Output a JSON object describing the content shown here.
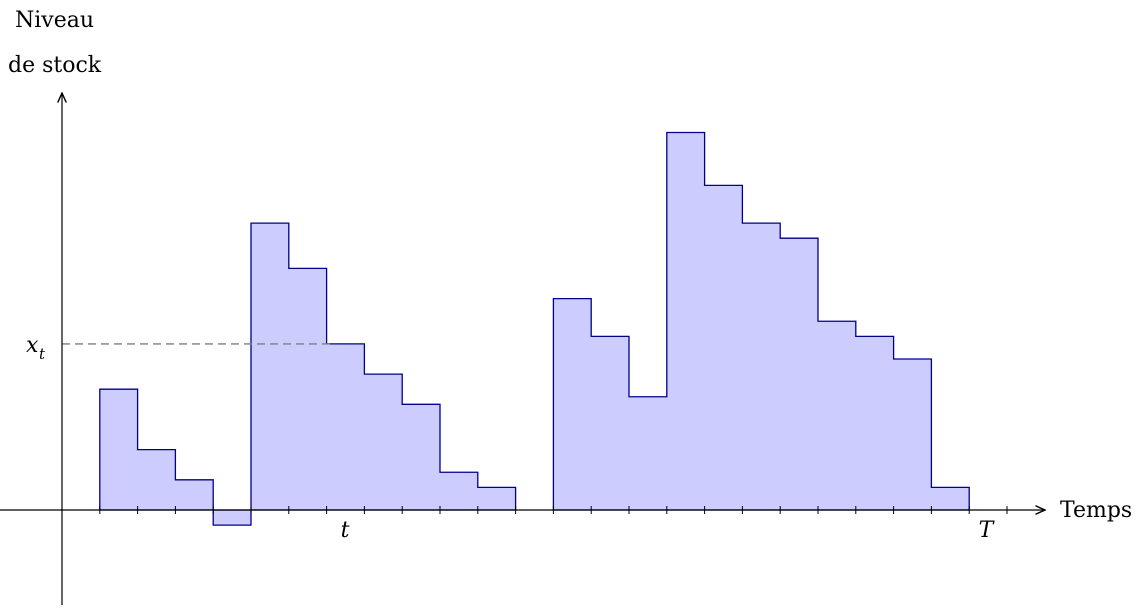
{
  "labels": {
    "y_axis_line1": "Niveau",
    "y_axis_line2": "de stock",
    "x_axis": "Temps",
    "level_main": "x",
    "level_sub": "t",
    "tick_t": "t",
    "tick_T": "T"
  },
  "chart_data": {
    "type": "area",
    "style": "step",
    "x_ticks": 24,
    "series": [
      {
        "values": [
          8,
          4,
          2,
          -1,
          19,
          16,
          11,
          9,
          7,
          2.5,
          1.5
        ]
      },
      {
        "values": [
          14,
          11.5,
          7.5,
          25,
          21.5,
          19,
          18,
          12.5,
          11.5,
          10,
          1.5
        ]
      }
    ],
    "series_start_tick": [
      1,
      13
    ],
    "reference_level": 11,
    "marked_ticks": {
      "t": 7.5,
      "T": 24
    },
    "colors": {
      "fill": "#ccccff",
      "stroke": "#00008b",
      "dashed": "#7f7f7f"
    }
  }
}
